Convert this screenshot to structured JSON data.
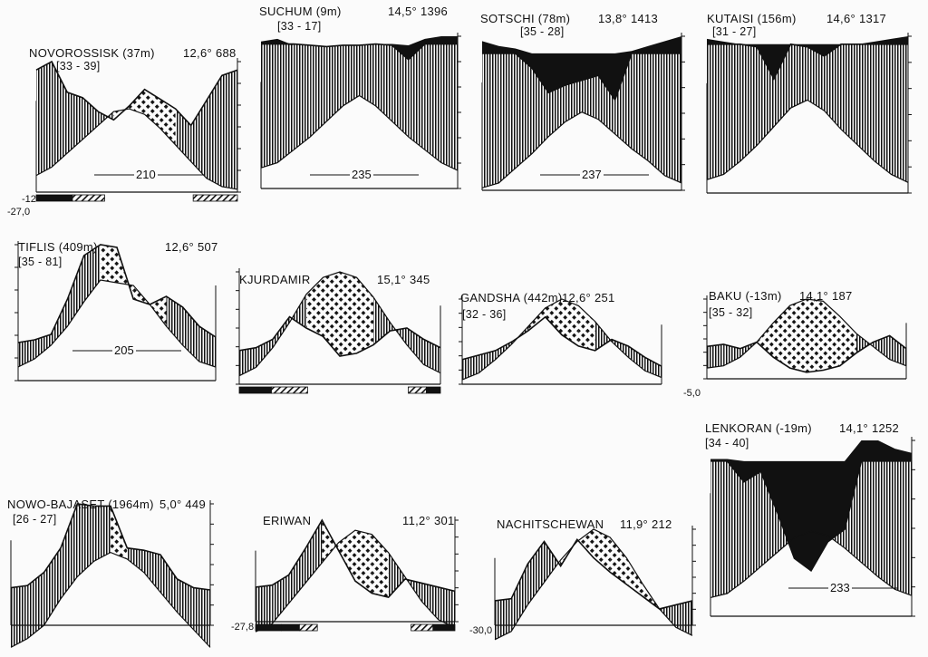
{
  "chart_data": [
    {
      "type": "area",
      "title": "NOVOROSSISK (37m)",
      "range": "[33 - 39]",
      "temperature": "12,6°",
      "precipitation": "688",
      "dry_days": "210",
      "min_label": "-12",
      "abs_min": "-27,0",
      "precip_curve": [
        88,
        94,
        72,
        68,
        58,
        52,
        62,
        74,
        67,
        60,
        48,
        66,
        84,
        88
      ],
      "temp_curve": [
        12,
        18,
        28,
        38,
        48,
        58,
        60,
        56,
        46,
        34,
        22,
        10,
        4,
        2
      ],
      "dry_fill": [
        false,
        false,
        false,
        false,
        false,
        true,
        true,
        true,
        true,
        true,
        false,
        false,
        false,
        false
      ],
      "frost": [
        {
          "from": 0,
          "to": 0.18,
          "kind": "solid"
        },
        {
          "from": 0.18,
          "to": 0.34,
          "kind": "hatched"
        },
        {
          "from": 0.78,
          "to": 1,
          "kind": "hatched"
        }
      ],
      "side_ticks": "right"
    },
    {
      "type": "area",
      "title": "SUCHUM (9m)",
      "range": "[33 - 17]",
      "temperature": "14,5°",
      "precipitation": "1396",
      "dry_days": "235",
      "precip_curve": [
        112,
        112,
        112,
        111,
        110,
        111,
        111,
        112,
        111,
        100,
        112,
        112,
        112
      ],
      "temp_curve": [
        16,
        20,
        30,
        40,
        52,
        64,
        72,
        64,
        52,
        40,
        30,
        20,
        14
      ],
      "humid_tops": [
        114,
        116,
        111,
        110,
        110,
        110,
        111,
        112,
        112,
        111,
        116,
        118,
        118
      ],
      "side_ticks": "right"
    },
    {
      "type": "area",
      "title": "SOTSCHI (78m)",
      "range": "[35 - 28]",
      "temperature": "13,8°",
      "precipitation": "1413",
      "dry_days": "237",
      "precip_curve": [
        112,
        112,
        112,
        100,
        80,
        86,
        90,
        94,
        74,
        112,
        112,
        112,
        112
      ],
      "temp_curve": [
        2,
        6,
        18,
        30,
        44,
        56,
        64,
        58,
        46,
        34,
        24,
        12,
        6
      ],
      "humid_tops": [
        122,
        118,
        116,
        112,
        112,
        112,
        112,
        112,
        112,
        114,
        118,
        122,
        126
      ],
      "side_ticks": "right"
    },
    {
      "type": "area",
      "title": "KUTAISI (156m)",
      "range": "[31 - 27]",
      "temperature": "14,6°",
      "precipitation": "1317",
      "dry_days": "",
      "precip_curve": [
        112,
        112,
        112,
        110,
        86,
        112,
        110,
        103,
        112,
        112,
        112,
        112,
        112
      ],
      "temp_curve": [
        10,
        14,
        24,
        36,
        50,
        64,
        70,
        62,
        48,
        36,
        24,
        14,
        8
      ],
      "humid_tops": [
        116,
        114,
        112,
        112,
        112,
        112,
        112,
        112,
        112,
        112,
        114,
        116,
        118
      ],
      "side_ticks": "right"
    },
    {
      "type": "area",
      "title": "TIFLIS (409m)",
      "range": "[35 - 81]",
      "temperature": "12,6°",
      "precipitation": "507",
      "dry_days": "205",
      "precip_curve": [
        28,
        30,
        34,
        60,
        92,
        100,
        98,
        60,
        56,
        62,
        54,
        40,
        32
      ],
      "temp_curve": [
        10,
        16,
        26,
        40,
        58,
        74,
        72,
        70,
        56,
        40,
        26,
        14,
        10
      ],
      "dry_fill": [
        false,
        false,
        false,
        false,
        false,
        true,
        true,
        true,
        true,
        true,
        false,
        false,
        false
      ],
      "side_ticks": "left"
    },
    {
      "type": "area",
      "title": "KJURDAMIR",
      "range": "",
      "temperature": "15,1°",
      "precipitation": "345",
      "dry_days": "",
      "precip_curve": [
        24,
        26,
        32,
        48,
        40,
        34,
        20,
        22,
        28,
        38,
        40,
        32,
        26
      ],
      "temp_curve": [
        6,
        12,
        26,
        44,
        64,
        76,
        80,
        76,
        62,
        44,
        28,
        14,
        8
      ],
      "dry_fill": [
        false,
        false,
        false,
        false,
        true,
        true,
        true,
        true,
        true,
        false,
        false,
        false,
        false
      ],
      "frost": [
        {
          "from": 0,
          "to": 0.16,
          "kind": "solid"
        },
        {
          "from": 0.16,
          "to": 0.34,
          "kind": "hatched"
        },
        {
          "from": 0.84,
          "to": 0.93,
          "kind": "hatched"
        },
        {
          "from": 0.93,
          "to": 1,
          "kind": "solid"
        }
      ],
      "side_ticks": "left"
    },
    {
      "type": "area",
      "title": "GANDSHA (442m)",
      "range": "[32 - 36]",
      "temperature": "12,6°",
      "precipitation": "251",
      "dry_days": "",
      "precip_curve": [
        22,
        26,
        30,
        38,
        48,
        60,
        44,
        34,
        30,
        40,
        34,
        24,
        16
      ],
      "temp_curve": [
        4,
        10,
        22,
        36,
        52,
        68,
        76,
        70,
        56,
        38,
        24,
        12,
        6
      ],
      "dry_fill": [
        false,
        false,
        false,
        false,
        true,
        true,
        true,
        true,
        true,
        false,
        false,
        false,
        false
      ],
      "side_ticks": "left"
    },
    {
      "type": "area",
      "title": "BAKU (-13m)",
      "range": "[35 - 32]",
      "temperature": "14,1°",
      "precipitation": "187",
      "dry_days": "",
      "abs_min": "-5,0",
      "precip_curve": [
        30,
        32,
        28,
        34,
        20,
        10,
        6,
        8,
        12,
        24,
        34,
        40,
        28
      ],
      "temp_curve": [
        10,
        12,
        20,
        34,
        52,
        68,
        74,
        72,
        58,
        42,
        30,
        18,
        12
      ],
      "dry_fill": [
        false,
        false,
        false,
        true,
        true,
        true,
        true,
        true,
        true,
        true,
        false,
        false,
        false
      ],
      "side_ticks": "left"
    },
    {
      "type": "area",
      "title": "NOWO-BAJASET (1964m)",
      "range": "[26 - 27]",
      "temperature": "5,0°",
      "precipitation": "449",
      "dry_days": "",
      "precip_curve": [
        34,
        36,
        48,
        70,
        110,
        108,
        108,
        70,
        68,
        64,
        42,
        34,
        32
      ],
      "temp_curve": [
        -20,
        -12,
        0,
        24,
        44,
        58,
        66,
        60,
        48,
        30,
        12,
        -4,
        -20
      ],
      "dry_fill": [
        false,
        false,
        false,
        false,
        false,
        false,
        true,
        true,
        false,
        false,
        false,
        false,
        false
      ],
      "side_ticks": "right"
    },
    {
      "type": "area",
      "title": "ERIWAN",
      "range": "",
      "temperature": "11,2°",
      "precipitation": "301",
      "dry_days": "",
      "abs_min": "-27,8",
      "precip_curve": [
        34,
        36,
        46,
        72,
        100,
        70,
        40,
        28,
        24,
        42,
        38,
        34,
        30
      ],
      "temp_curve": [
        -10,
        -2,
        18,
        38,
        58,
        78,
        90,
        86,
        68,
        44,
        20,
        2,
        -6
      ],
      "dry_fill": [
        false,
        false,
        false,
        false,
        true,
        true,
        true,
        true,
        true,
        false,
        false,
        false,
        false
      ],
      "frost": [
        {
          "from": 0,
          "to": 0.13,
          "kind": "solid"
        },
        {
          "from": 0.13,
          "to": 0.22,
          "kind": "solid"
        },
        {
          "from": 0.22,
          "to": 0.31,
          "kind": "hatched"
        },
        {
          "from": 0.78,
          "to": 0.89,
          "kind": "hatched"
        },
        {
          "from": 0.89,
          "to": 1,
          "kind": "solid"
        }
      ],
      "side_ticks": "right"
    },
    {
      "type": "area",
      "title": "NACHITSCHEWAN",
      "range": "",
      "temperature": "11,9°",
      "precipitation": "212",
      "dry_days": "",
      "abs_min": "-30,0",
      "precip_curve": [
        24,
        26,
        60,
        82,
        58,
        84,
        66,
        52,
        40,
        28,
        16,
        20,
        24
      ],
      "temp_curve": [
        -14,
        -6,
        20,
        42,
        64,
        82,
        94,
        86,
        66,
        40,
        16,
        -2,
        -10
      ],
      "dry_fill": [
        false,
        false,
        false,
        false,
        true,
        true,
        true,
        true,
        true,
        true,
        true,
        false,
        false
      ],
      "side_ticks": "right"
    },
    {
      "type": "area",
      "title": "LENKORAN (-19m)",
      "range": "[34 - 40]",
      "temperature": "14,1°",
      "precipitation": "1252",
      "dry_days": "233",
      "precip_curve": [
        150,
        150,
        130,
        140,
        100,
        56,
        44,
        72,
        84,
        150,
        150,
        150,
        150
      ],
      "temp_curve": [
        18,
        22,
        34,
        48,
        62,
        76,
        82,
        78,
        66,
        52,
        38,
        26,
        20
      ],
      "dry_fill": [
        false,
        false,
        false,
        false,
        false,
        true,
        true,
        true,
        false,
        false,
        false,
        false,
        false
      ],
      "humid_tops": [
        152,
        152,
        150,
        150,
        150,
        150,
        150,
        150,
        150,
        170,
        170,
        162,
        158
      ],
      "side_ticks": "right"
    }
  ]
}
